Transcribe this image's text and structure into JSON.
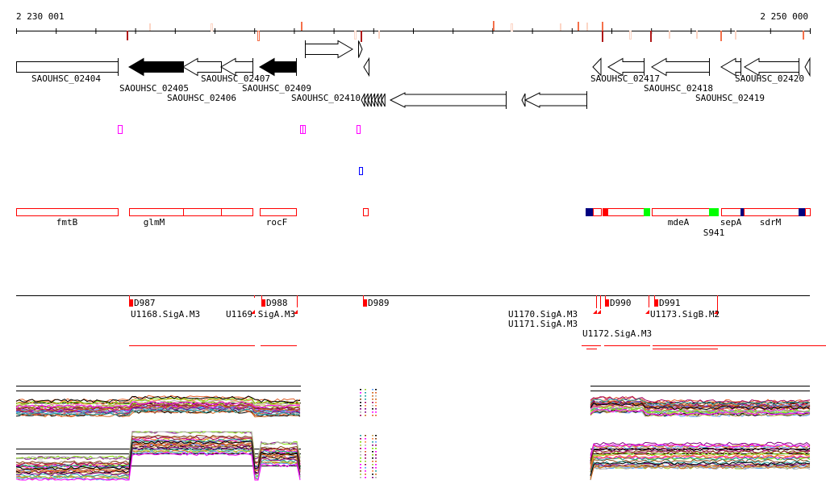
{
  "ruler": {
    "start_label": "2 230 001",
    "end_label": "2 250 000"
  },
  "genes": [
    {
      "label": "SAOUHSC_02404",
      "fill": "white"
    },
    {
      "label": "SAOUHSC_02405",
      "fill": "black"
    },
    {
      "label": "SAOUHSC_02406",
      "fill": "white"
    },
    {
      "label": "SAOUHSC_02407",
      "fill": "white"
    },
    {
      "label": "SAOUHSC_02409",
      "fill": "black"
    },
    {
      "label": "SAOUHSC_02410",
      "fill": "white"
    },
    {
      "label": "SAOUHSC_02417",
      "fill": "white"
    },
    {
      "label": "SAOUHSC_02418",
      "fill": "white"
    },
    {
      "label": "SAOUHSC_02419",
      "fill": "white"
    },
    {
      "label": "SAOUHSC_02420",
      "fill": "white"
    }
  ],
  "operons": [
    "fmtB",
    "glmM",
    "rocF",
    "mdeA",
    "S941",
    "sepA",
    "sdrM"
  ],
  "transcription_units": {
    "starts": [
      "D987",
      "D988",
      "D989",
      "D990",
      "D991"
    ],
    "units": [
      "U1168.SigA.M3",
      "U1169.SigA.M3",
      "U1170.SigA.M3",
      "U1171.SigA.M3",
      "U1172.SigA.M3",
      "U1173.SigB.M2"
    ]
  },
  "colors": {
    "red": "#ff0000",
    "magenta": "#ff00ff",
    "blue": "#0000ff",
    "navy": "#000080",
    "green": "#00ff00",
    "mark_dark": "#b01818",
    "mark_mid": "#f4704a",
    "mark_light": "#fcd5c5"
  }
}
